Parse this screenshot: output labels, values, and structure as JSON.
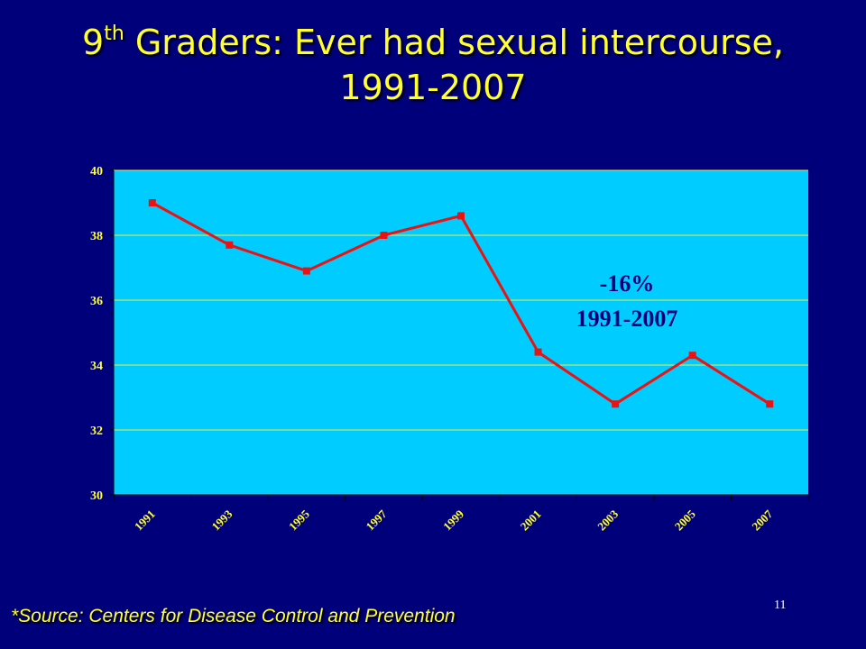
{
  "slide": {
    "title_prefix": "9",
    "title_sup": "th",
    "title_main": " Graders: Ever had sexual intercourse,",
    "title_line2": "1991-2007",
    "source": "*Source: Centers for Disease Control and Prevention",
    "page_number": "11"
  },
  "chart_data": {
    "type": "line",
    "x": [
      "1991",
      "1993",
      "1995",
      "1997",
      "1999",
      "2001",
      "2003",
      "2005",
      "2007"
    ],
    "series": [
      {
        "values": [
          39.0,
          37.7,
          36.9,
          38.0,
          38.6,
          34.4,
          32.8,
          34.3,
          32.8
        ]
      }
    ],
    "ylim": [
      30,
      40
    ],
    "yticks": [
      30,
      32,
      34,
      36,
      38,
      40
    ],
    "grid": true,
    "annotation": {
      "line1": "-16%",
      "line2": "1991-2007"
    },
    "colors": {
      "background": "#00007a",
      "plot_area": "#00ccff",
      "line": "#ee1111",
      "gridline": "#e8ee44",
      "text": "#ffff33"
    }
  }
}
